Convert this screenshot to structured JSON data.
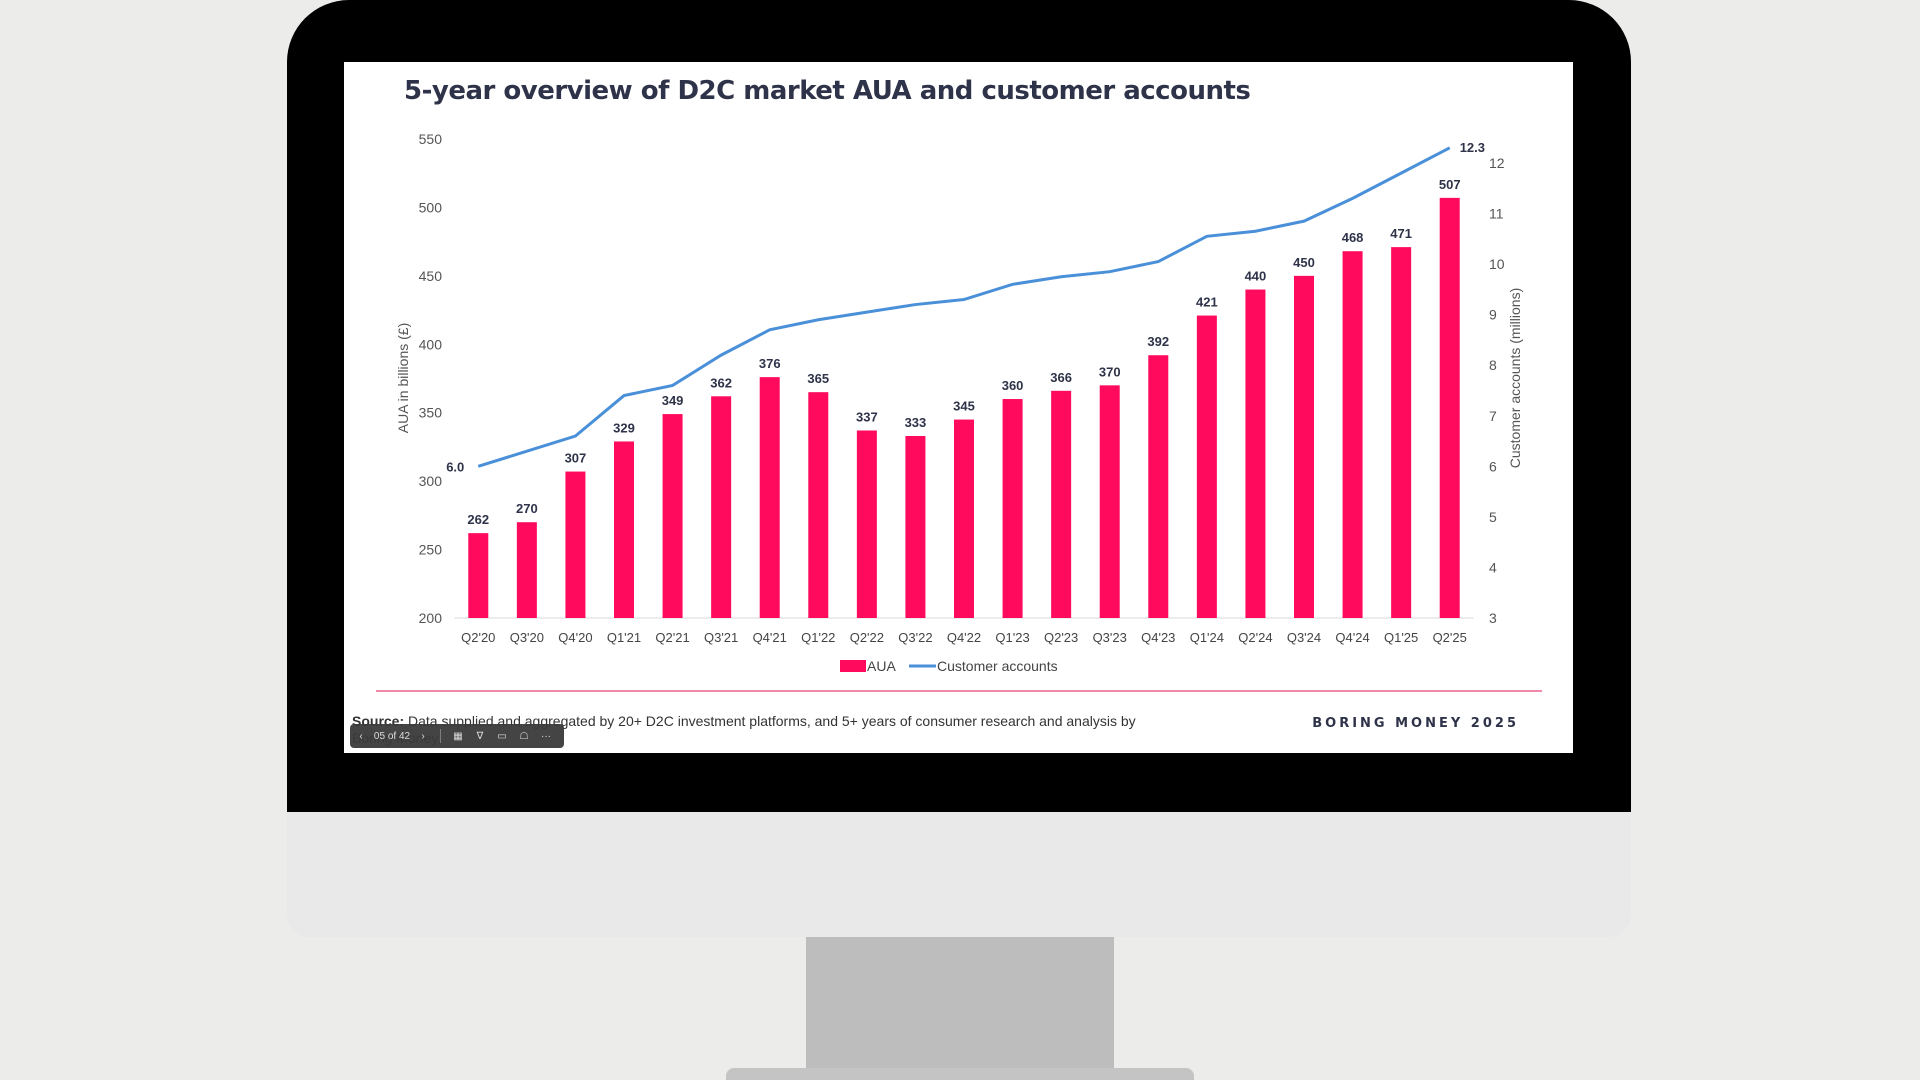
{
  "slide": {
    "title": "5-year overview of D2C market AUA and customer accounts",
    "source_label": "Source:",
    "source_text": " Data supplied and aggregated by 20+ D2C investment platforms, and 5+ years of consumer research and analysis by Boring Money.",
    "brand": "BORING MONEY 2025"
  },
  "toolbar": {
    "prev_icon": "‹",
    "page_indicator": "05 of 42",
    "next_icon": "›",
    "grid_icon": "▦",
    "pen_icon": "∇",
    "camera_icon": "▭",
    "comment_icon": "☖",
    "more_icon": "···"
  },
  "colors": {
    "aua": "#ff0a5c",
    "line": "#4a90d9",
    "title": "#2f3349"
  },
  "chart_data": {
    "type": "bar",
    "title": "5-year overview of D2C market AUA and customer accounts",
    "categories": [
      "Q2'20",
      "Q3'20",
      "Q4'20",
      "Q1'21",
      "Q2'21",
      "Q3'21",
      "Q4'21",
      "Q1'22",
      "Q2'22",
      "Q3'22",
      "Q4'22",
      "Q1'23",
      "Q2'23",
      "Q3'23",
      "Q4'23",
      "Q1'24",
      "Q2'24",
      "Q3'24",
      "Q4'24",
      "Q1'25",
      "Q2'25"
    ],
    "series": [
      {
        "name": "AUA",
        "type": "bar",
        "axis": "left",
        "values": [
          262,
          270,
          307,
          329,
          349,
          362,
          376,
          365,
          337,
          333,
          345,
          360,
          366,
          370,
          392,
          421,
          440,
          450,
          468,
          471,
          507
        ]
      },
      {
        "name": "Customer accounts",
        "type": "line",
        "axis": "right",
        "values": [
          6.0,
          6.3,
          6.6,
          7.4,
          7.6,
          8.2,
          8.7,
          8.9,
          9.05,
          9.2,
          9.3,
          9.6,
          9.75,
          9.85,
          10.05,
          10.55,
          10.65,
          10.85,
          11.3,
          11.8,
          12.3
        ]
      }
    ],
    "ylabel": "AUA in billions (£)",
    "ylim": [
      200,
      550
    ],
    "yticks": [
      200,
      250,
      300,
      350,
      400,
      450,
      500,
      550
    ],
    "y2label": "Customer accounts (millions)",
    "y2lim": [
      3,
      12.5
    ],
    "y2ticks": [
      3,
      4,
      5,
      6,
      7,
      8,
      9,
      10,
      11,
      12
    ],
    "line_labels": {
      "first": "6.0",
      "last": "12.3"
    },
    "legend": [
      "AUA",
      "Customer accounts"
    ],
    "legend_position": "bottom",
    "grid": false
  }
}
